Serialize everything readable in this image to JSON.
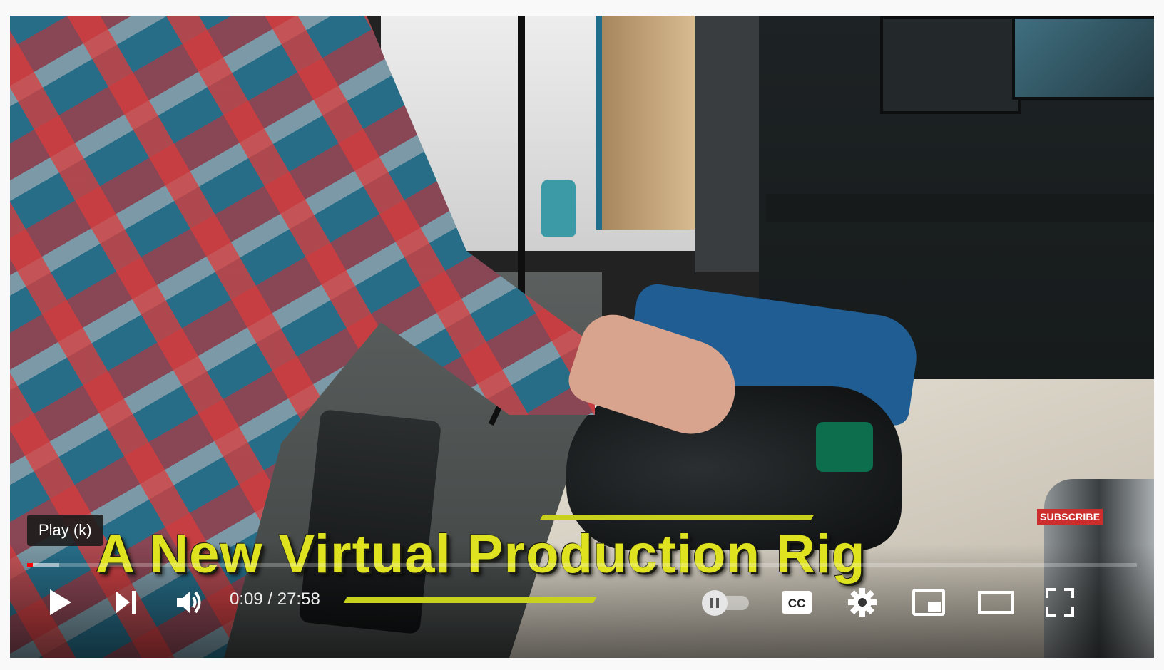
{
  "video": {
    "title_overlay": "A New Virtual Production Rig",
    "watermark": "SUBSCRIBE",
    "tooltip": "Play (k)",
    "played_fraction": 0.0054,
    "buffered_fraction": 0.029
  },
  "controls": {
    "current_time": "0:09",
    "separator": " / ",
    "duration": "27:58",
    "cc_label": "CC",
    "icons": [
      "play-icon",
      "next-icon",
      "volume-icon",
      "autoplay-toggle",
      "captions-icon",
      "settings-icon",
      "miniplayer-icon",
      "theater-icon",
      "fullscreen-icon"
    ]
  },
  "colors": {
    "progress": "#ff0000",
    "title": "#dfe21f",
    "subscribe": "#cc2e2e"
  }
}
